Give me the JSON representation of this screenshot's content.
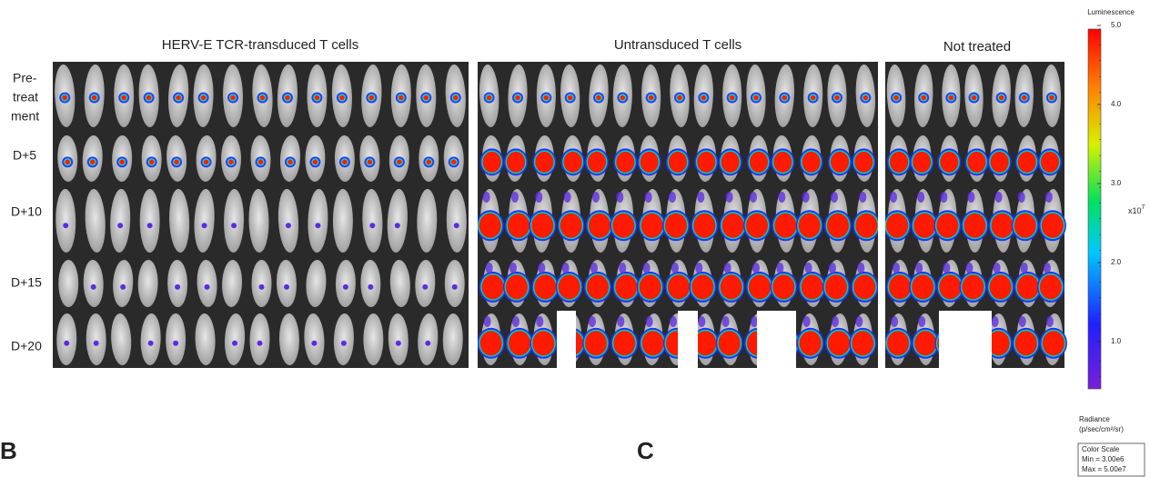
{
  "figure": {
    "groups": [
      "HERV-E TCR-transduced  T cells",
      "Untransduced T cells",
      "Not treated"
    ],
    "rows": [
      [
        "Pre-",
        "treat",
        "ment"
      ],
      [
        "D+5"
      ],
      [
        "D+10"
      ],
      [
        "D+15"
      ],
      [
        "D+20"
      ]
    ],
    "panel_letters": [
      "B",
      "C"
    ],
    "colorbar": {
      "title": "Luminescence",
      "ticks": [
        "5.0",
        "4.0",
        "3.0",
        "2.0",
        "1.0"
      ],
      "multiplier": "x10",
      "exponent": "7",
      "unit": [
        "Radiance",
        "(p/sec/cm²/sr)"
      ],
      "scale_box": [
        "Color Scale",
        "Min = 3.00e6",
        "Max = 5.00e7"
      ]
    }
  }
}
